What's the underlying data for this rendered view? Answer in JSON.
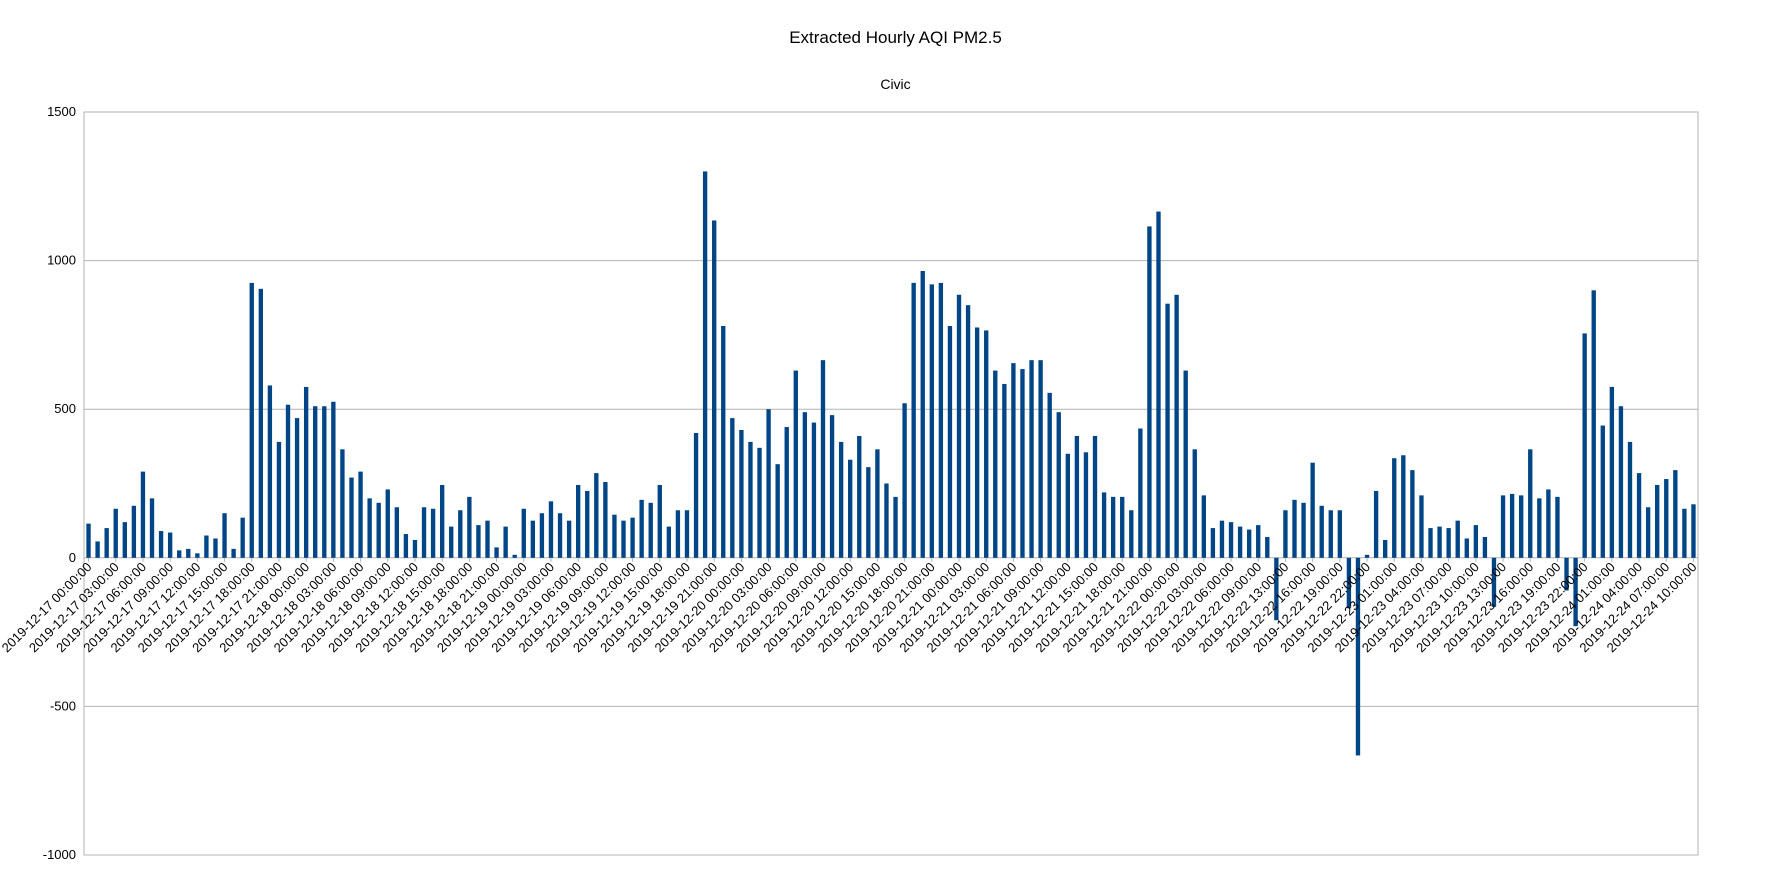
{
  "chart_data": {
    "type": "bar",
    "title": "Extracted Hourly AQI PM2.5",
    "subtitle": "Civic",
    "xlabel": "",
    "ylabel": "",
    "ylim": [
      -1000,
      1500
    ],
    "yticks": [
      -1000,
      -500,
      0,
      500,
      1000,
      1500
    ],
    "grid": true,
    "bar_color": "#004586",
    "start": "2019-12-17 00:00:00",
    "x_tick_labels": [
      "2019-12-17 00:00:00",
      "2019-12-17 03:00:00",
      "2019-12-17 06:00:00",
      "2019-12-17 09:00:00",
      "2019-12-17 12:00:00",
      "2019-12-17 15:00:00",
      "2019-12-17 18:00:00",
      "2019-12-17 21:00:00",
      "2019-12-18 00:00:00",
      "2019-12-18 03:00:00",
      "2019-12-18 06:00:00",
      "2019-12-18 09:00:00",
      "2019-12-18 12:00:00",
      "2019-12-18 15:00:00",
      "2019-12-18 18:00:00",
      "2019-12-18 21:00:00",
      "2019-12-19 00:00:00",
      "2019-12-19 03:00:00",
      "2019-12-19 06:00:00",
      "2019-12-19 09:00:00",
      "2019-12-19 12:00:00",
      "2019-12-19 15:00:00",
      "2019-12-19 18:00:00",
      "2019-12-19 21:00:00",
      "2019-12-20 00:00:00",
      "2019-12-20 03:00:00",
      "2019-12-20 06:00:00",
      "2019-12-20 09:00:00",
      "2019-12-20 12:00:00",
      "2019-12-20 15:00:00",
      "2019-12-20 18:00:00",
      "2019-12-20 21:00:00",
      "2019-12-21 00:00:00",
      "2019-12-21 03:00:00",
      "2019-12-21 06:00:00",
      "2019-12-21 09:00:00",
      "2019-12-21 12:00:00",
      "2019-12-21 15:00:00",
      "2019-12-21 18:00:00",
      "2019-12-21 21:00:00",
      "2019-12-22 00:00:00",
      "2019-12-22 03:00:00",
      "2019-12-22 06:00:00",
      "2019-12-22 09:00:00",
      "2019-12-22 13:00:00",
      "2019-12-22 16:00:00",
      "2019-12-22 19:00:00",
      "2019-12-22 22:00:00",
      "2019-12-23 01:00:00",
      "2019-12-23 04:00:00",
      "2019-12-23 07:00:00",
      "2019-12-23 10:00:00",
      "2019-12-23 13:00:00",
      "2019-12-23 16:00:00",
      "2019-12-23 19:00:00",
      "2019-12-23 22:00:00",
      "2019-12-24 01:00:00",
      "2019-12-24 04:00:00",
      "2019-12-24 07:00:00",
      "2019-12-24 10:00:00"
    ],
    "values": [
      115,
      55,
      100,
      165,
      120,
      175,
      290,
      200,
      90,
      85,
      25,
      30,
      15,
      75,
      65,
      150,
      30,
      135,
      925,
      905,
      580,
      390,
      515,
      470,
      575,
      510,
      510,
      525,
      365,
      270,
      290,
      200,
      185,
      230,
      170,
      80,
      60,
      170,
      165,
      245,
      105,
      160,
      205,
      110,
      125,
      35,
      105,
      10,
      165,
      125,
      150,
      190,
      150,
      125,
      245,
      225,
      285,
      255,
      145,
      125,
      135,
      195,
      185,
      245,
      105,
      160,
      160,
      420,
      1300,
      1135,
      780,
      470,
      430,
      390,
      370,
      500,
      315,
      440,
      630,
      490,
      455,
      665,
      480,
      390,
      330,
      410,
      305,
      365,
      250,
      205,
      520,
      925,
      965,
      920,
      925,
      780,
      885,
      850,
      775,
      765,
      630,
      585,
      655,
      635,
      665,
      665,
      555,
      490,
      350,
      410,
      355,
      410,
      220,
      205,
      205,
      160,
      435,
      1115,
      1165,
      855,
      885,
      630,
      365,
      210,
      100,
      125,
      120,
      105,
      95,
      110,
      70,
      -210,
      160,
      195,
      185,
      320,
      175,
      160,
      160,
      -170,
      -665,
      10,
      225,
      60,
      335,
      345,
      295,
      210,
      100,
      105,
      100,
      125,
      65,
      110,
      70,
      -165,
      210,
      215,
      210,
      365,
      200,
      230,
      205,
      -110,
      -230,
      755,
      900,
      445,
      575,
      510,
      390,
      285,
      170,
      245,
      265,
      295,
      165,
      180
    ]
  }
}
